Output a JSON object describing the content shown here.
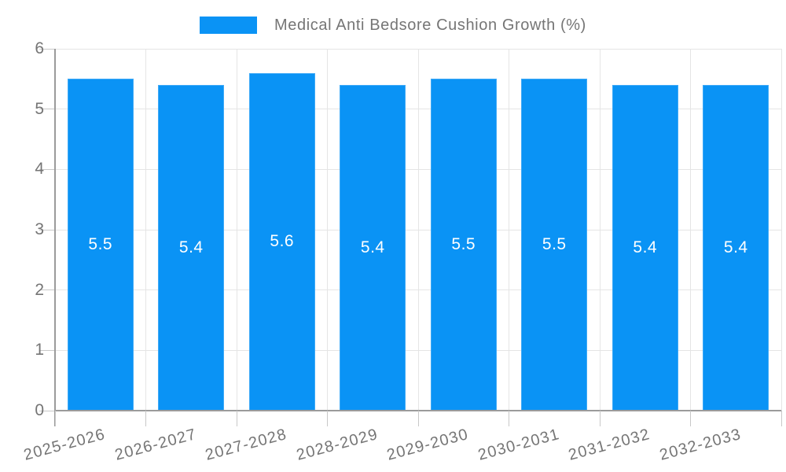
{
  "chart_data": {
    "type": "bar",
    "title": "Medical Anti Bedsore Cushion Growth (%)",
    "categories": [
      "2025-2026",
      "2026-2027",
      "2027-2028",
      "2028-2029",
      "2029-2030",
      "2030-2031",
      "2031-2032",
      "2032-2033"
    ],
    "values": [
      5.5,
      5.4,
      5.6,
      5.4,
      5.5,
      5.5,
      5.4,
      5.4
    ],
    "data_labels": [
      "5.5",
      "5.4",
      "5.6",
      "5.4",
      "5.5",
      "5.5",
      "5.4",
      "5.4"
    ],
    "xlabel": "",
    "ylabel": "",
    "ylim": [
      0,
      6
    ],
    "yticks": [
      0,
      1,
      2,
      3,
      4,
      5,
      6
    ],
    "grid": true,
    "legend_position": "top-center",
    "colors": {
      "bar": "#0a93f5",
      "bar_label": "#ffffff",
      "grid": "#e5e5e5",
      "axis": "#9b9b9b",
      "tick": "#c8c8c8",
      "text": "#757575"
    }
  }
}
